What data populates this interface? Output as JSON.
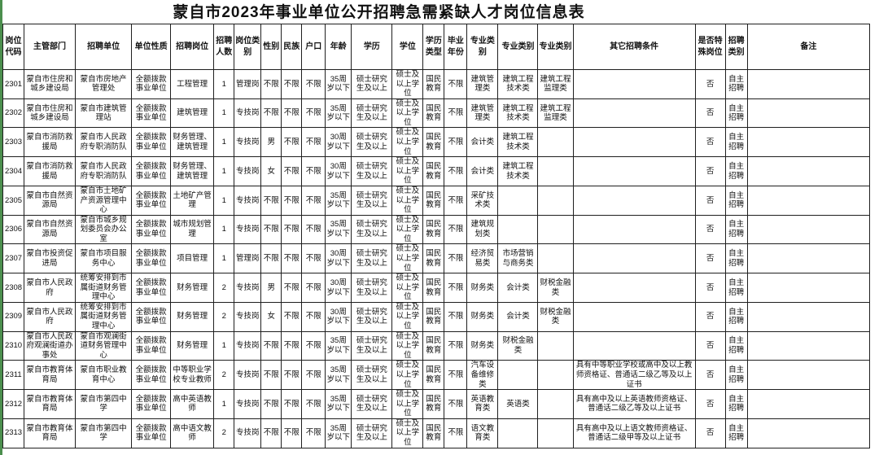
{
  "title": "蒙自市2023年事业单位公开招聘急需紧缺人才岗位信息表",
  "colors": {
    "background": "#ffffff",
    "border": "#1f1f1f",
    "text": "#111111",
    "edge_strip_green": "#4c8f4e"
  },
  "table": {
    "headers": [
      "岗位代码",
      "主管部门",
      "招聘单位",
      "单位性质",
      "招聘岗位",
      "招聘人数",
      "岗位类别",
      "性别",
      "民族",
      "户口",
      "年龄",
      "学历",
      "学位",
      "学历类型",
      "毕业年份",
      "专业类别",
      "专业类别",
      "专业类别",
      "其它招聘条件",
      "是否特殊岗位",
      "招聘类别",
      "备注"
    ],
    "rows": [
      [
        "2301",
        "蒙自市住房和城乡建设局",
        "蒙自市房地产管理处",
        "全额拨款事业单位",
        "工程管理",
        "1",
        "管理岗",
        "不限",
        "不限",
        "不限",
        "35周岁以下",
        "硕士研究生及以上",
        "硕士及以上学位",
        "国民教育",
        "不限",
        "建筑管理类",
        "建筑工程技术类",
        "建筑工程监理类",
        "",
        "否",
        "自主招聘",
        ""
      ],
      [
        "2302",
        "蒙自市住房和城乡建设局",
        "蒙自市建筑管理站",
        "全额拨款事业单位",
        "建筑管理",
        "1",
        "专技岗",
        "不限",
        "不限",
        "不限",
        "35周岁以下",
        "硕士研究生及以上",
        "硕士及以上学位",
        "国民教育",
        "不限",
        "建筑管理类",
        "建筑工程技术类",
        "建筑工程监理类",
        "",
        "否",
        "自主招聘",
        ""
      ],
      [
        "2303",
        "蒙自市消防救援局",
        "蒙自市人民政府专职消防队",
        "全额拨款事业单位",
        "财务管理、建筑管理",
        "1",
        "专技岗",
        "男",
        "不限",
        "不限",
        "30周岁以下",
        "硕士研究生及以上",
        "硕士及以上学位",
        "国民教育",
        "不限",
        "会计类",
        "建筑工程技术类",
        "",
        "",
        "否",
        "自主招聘",
        ""
      ],
      [
        "2304",
        "蒙自市消防救援局",
        "蒙自市人民政府专职消防队",
        "全额拨款事业单位",
        "财务管理、建筑管理",
        "1",
        "专技岗",
        "女",
        "不限",
        "不限",
        "30周岁以下",
        "硕士研究生及以上",
        "硕士及以上学位",
        "国民教育",
        "不限",
        "会计类",
        "建筑工程技术类",
        "",
        "",
        "否",
        "自主招聘",
        ""
      ],
      [
        "2305",
        "蒙自市自然资源局",
        "蒙自市土地矿产资源管理中心",
        "全额拨款事业单位",
        "土地矿产管理",
        "1",
        "专技岗",
        "不限",
        "不限",
        "不限",
        "35周岁以下",
        "硕士研究生及以上",
        "硕士及以上学位",
        "国民教育",
        "不限",
        "采矿技术类",
        "",
        "",
        "",
        "否",
        "自主招聘",
        ""
      ],
      [
        "2306",
        "蒙自市自然资源局",
        "蒙自市城乡规划委员会办公室",
        "全额拨款事业单位",
        "城市规划管理",
        "1",
        "专技岗",
        "不限",
        "不限",
        "不限",
        "35周岁以下",
        "硕士研究生及以上",
        "硕士及以上学位",
        "国民教育",
        "不限",
        "建筑规划类",
        "",
        "",
        "",
        "否",
        "自主招聘",
        ""
      ],
      [
        "2307",
        "蒙自市投资促进局",
        "蒙自市项目服务中心",
        "全额拨款事业单位",
        "项目管理",
        "1",
        "管理岗",
        "不限",
        "不限",
        "不限",
        "30周岁以下",
        "硕士研究生及以上",
        "硕士及以上学位",
        "国民教育",
        "不限",
        "经济贸易类",
        "市场营销与商务类",
        "",
        "",
        "否",
        "自主招聘",
        ""
      ],
      [
        "2308",
        "蒙自市人民政府",
        "统筹安排到市属街道财务管理中心",
        "全额拨款事业单位",
        "财务管理",
        "2",
        "专技岗",
        "男",
        "不限",
        "不限",
        "30周岁以下",
        "硕士研究生及以上",
        "硕士及以上学位",
        "国民教育",
        "不限",
        "财务类",
        "会计类",
        "财税金融类",
        "",
        "否",
        "自主招聘",
        ""
      ],
      [
        "2309",
        "蒙自市人民政府",
        "统筹安排到市属街道财务管理中心",
        "全额拨款事业单位",
        "财务管理",
        "2",
        "专技岗",
        "女",
        "不限",
        "不限",
        "30周岁以下",
        "硕士研究生及以上",
        "硕士及以上学位",
        "国民教育",
        "不限",
        "财务类",
        "会计类",
        "财税金融类",
        "",
        "否",
        "自主招聘",
        ""
      ],
      [
        "2310",
        "蒙自市人民政府观澜街道办事处",
        "蒙自市观澜街道财务管理中心",
        "全额拨款事业单位",
        "财务管理",
        "1",
        "专技岗",
        "不限",
        "不限",
        "不限",
        "35周岁以下",
        "硕士研究生及以上",
        "硕士及以上学位",
        "国民教育",
        "不限",
        "财务类",
        "财税金融类",
        "",
        "",
        "否",
        "自主招聘",
        ""
      ],
      [
        "2311",
        "蒙自市教育体育局",
        "蒙自市职业教育中心",
        "全额拨款事业单位",
        "中等职业学校专业教师",
        "2",
        "专技岗",
        "不限",
        "不限",
        "不限",
        "35周岁以下",
        "硕士研究生及以上",
        "硕士及以上学位",
        "国民教育",
        "不限",
        "汽车设备维修类",
        "",
        "",
        "具有中等职业学校或高中及以上教师资格证、普通话二级乙等及以上证书",
        "否",
        "自主招聘",
        ""
      ],
      [
        "2312",
        "蒙自市教育体育局",
        "蒙自市第四中学",
        "全额拨款事业单位",
        "高中英语教师",
        "1",
        "专技岗",
        "不限",
        "不限",
        "不限",
        "35周岁以下",
        "硕士研究生及以上",
        "硕士及以上学位",
        "国民教育",
        "不限",
        "英语教育类",
        "英语类",
        "",
        "具有高中及以上英语教师资格证、普通话二级乙等及以上证书",
        "否",
        "自主招聘",
        ""
      ],
      [
        "2313",
        "蒙自市教育体育局",
        "蒙自市第四中学",
        "全额拨款事业单位",
        "高中语文教师",
        "2",
        "专技岗",
        "不限",
        "不限",
        "不限",
        "35周岁以下",
        "硕士研究生及以上",
        "硕士及以上学位",
        "国民教育",
        "不限",
        "语文教育类",
        "",
        "",
        "具有高中及以上语文教师资格证、普通话二级甲等及以上证书",
        "否",
        "自主招聘",
        ""
      ]
    ]
  }
}
